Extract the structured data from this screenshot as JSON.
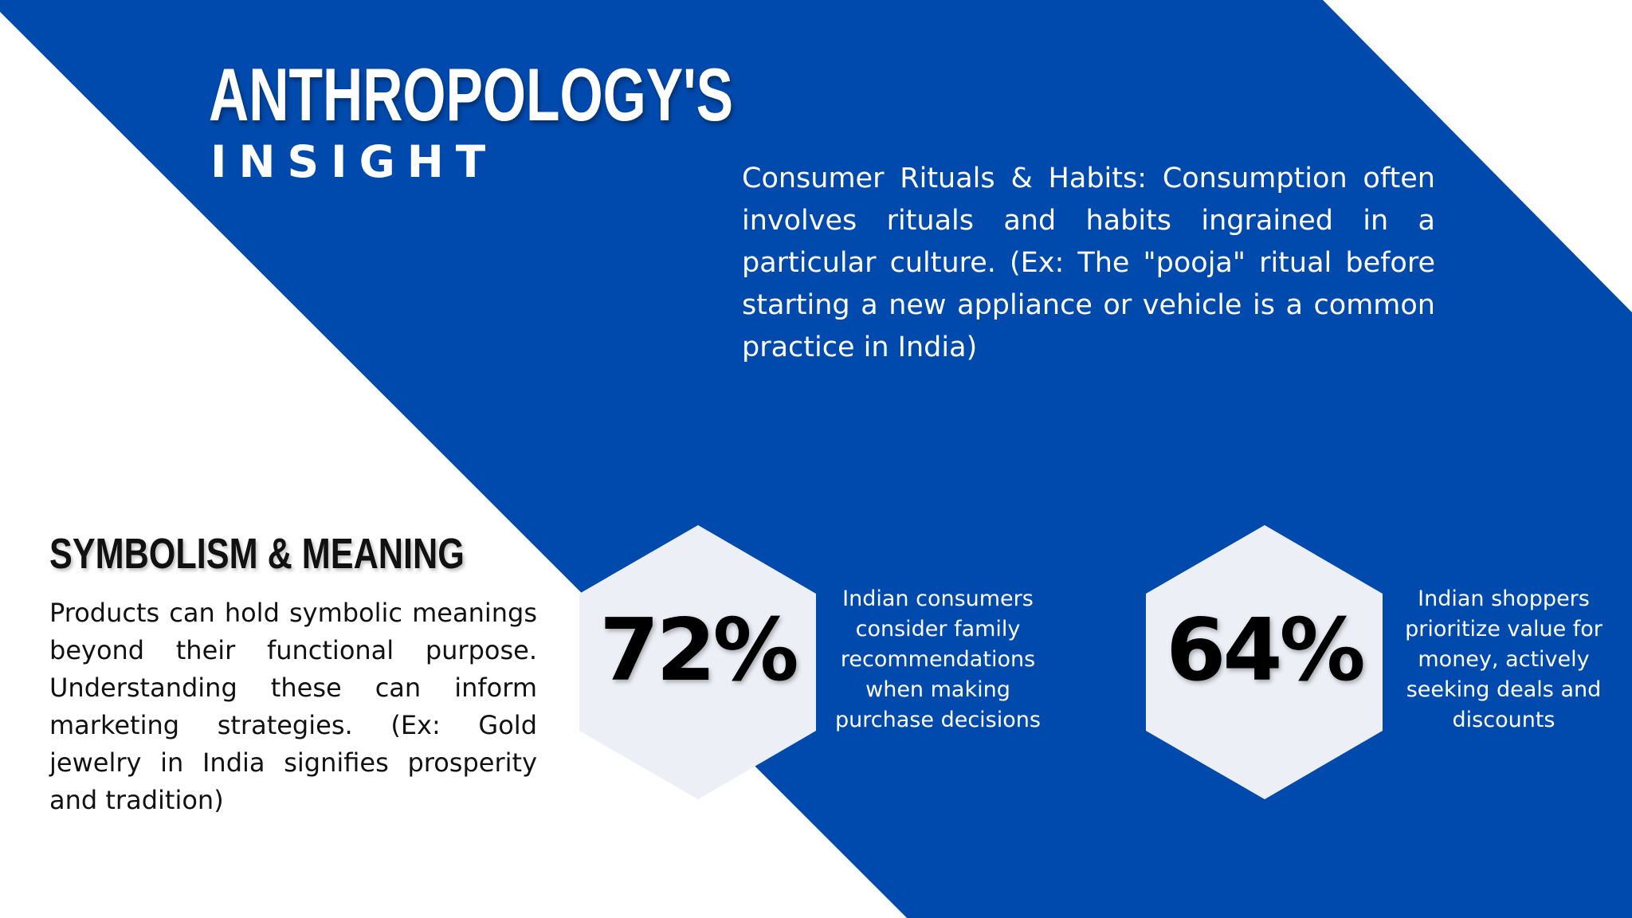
{
  "colors": {
    "background": "#ffffff",
    "accent_blue": "#014aad",
    "hexagon_fill": "#eceff6",
    "text_dark": "#111111",
    "text_light": "#ffffff"
  },
  "title": {
    "main": "ANTHROPOLOGY'S",
    "sub": "INSIGHT"
  },
  "rituals": {
    "text": "Consumer Rituals & Habits: Consumption often involves rituals and habits ingrained in a particular culture. (Ex: The \"pooja\" ritual before starting a new appliance or vehicle is a common practice in India)"
  },
  "symbolism": {
    "heading": "SYMBOLISM & MEANING",
    "body": "Products can hold symbolic meanings beyond their functional purpose. Understanding these can inform marketing strategies. (Ex: Gold jewelry in India signifies prosperity and tradition)"
  },
  "stats": [
    {
      "value": "72%",
      "description": "Indian consumers consider family recommendations when making purchase decisions"
    },
    {
      "value": "64%",
      "description": "Indian shoppers prioritize value for money, actively seeking deals and discounts"
    }
  ]
}
